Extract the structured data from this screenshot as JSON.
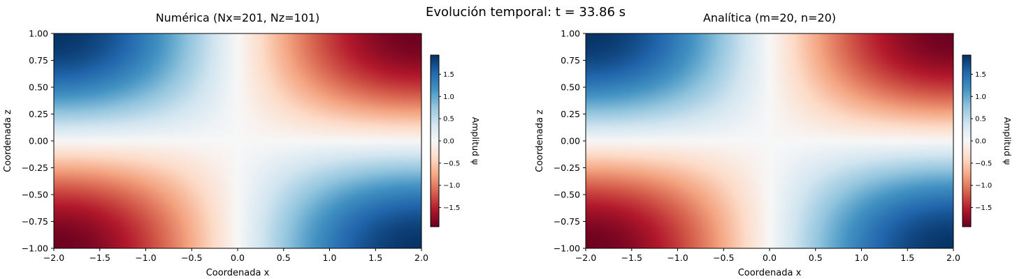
{
  "suptitle": "Evolución temporal: t = 33.86 s",
  "chart_data": [
    {
      "type": "heatmap",
      "title": "Numérica (Nx=201, Nz=101)",
      "xlabel": "Coordenada x",
      "ylabel": "Coordenada z",
      "xlim": [
        -2.0,
        2.0
      ],
      "ylim": [
        -1.0,
        1.0
      ],
      "xticks": [
        -2.0,
        -1.5,
        -1.0,
        -0.5,
        0.0,
        0.5,
        1.0,
        1.5,
        2.0
      ],
      "xtick_labels": [
        "−2.0",
        "−1.5",
        "−1.0",
        "−0.5",
        "0.0",
        "0.5",
        "1.0",
        "1.5",
        "2.0"
      ],
      "yticks": [
        -1.0,
        -0.75,
        -0.5,
        -0.25,
        0.0,
        0.25,
        0.5,
        0.75,
        1.0
      ],
      "ytick_labels": [
        "−1.00",
        "−0.75",
        "−0.50",
        "−0.25",
        "0.00",
        "0.25",
        "0.50",
        "0.75",
        "1.00"
      ],
      "colormap": "RdBu",
      "field": "psi(x,z) ≈ -1.9·sin(πx/4)·sin(πz/2)",
      "amplitude": 1.9,
      "colorbar": {
        "label": "Amplitud ψ",
        "range": [
          -1.93,
          1.93
        ],
        "ticks": [
          -1.5,
          -1.0,
          -0.5,
          0.0,
          0.5,
          1.0,
          1.5
        ],
        "tick_labels": [
          "−1.5",
          "−1.0",
          "−0.5",
          "0.0",
          "0.5",
          "1.0",
          "1.5"
        ]
      }
    },
    {
      "type": "heatmap",
      "title": "Analítica (m=20, n=20)",
      "xlabel": "Coordenada x",
      "ylabel": "Coordenada z",
      "xlim": [
        -2.0,
        2.0
      ],
      "ylim": [
        -1.0,
        1.0
      ],
      "xticks": [
        -2.0,
        -1.5,
        -1.0,
        -0.5,
        0.0,
        0.5,
        1.0,
        1.5,
        2.0
      ],
      "xtick_labels": [
        "−2.0",
        "−1.5",
        "−1.0",
        "−0.5",
        "0.0",
        "0.5",
        "1.0",
        "1.5",
        "2.0"
      ],
      "yticks": [
        -1.0,
        -0.75,
        -0.5,
        -0.25,
        0.0,
        0.25,
        0.5,
        0.75,
        1.0
      ],
      "ytick_labels": [
        "−1.00",
        "−0.75",
        "−0.50",
        "−0.25",
        "0.00",
        "0.25",
        "0.50",
        "0.75",
        "1.00"
      ],
      "colormap": "RdBu",
      "field": "psi(x,z) ≈ -1.9·sin(πx/4)·sin(πz/2)",
      "amplitude": 1.9,
      "colorbar": {
        "label": "Amplitud ψ",
        "range": [
          -1.93,
          1.93
        ],
        "ticks": [
          -1.5,
          -1.0,
          -0.5,
          0.0,
          0.5,
          1.0,
          1.5
        ],
        "tick_labels": [
          "−1.5",
          "−1.0",
          "−0.5",
          "0.0",
          "0.5",
          "1.0",
          "1.5"
        ]
      }
    }
  ]
}
